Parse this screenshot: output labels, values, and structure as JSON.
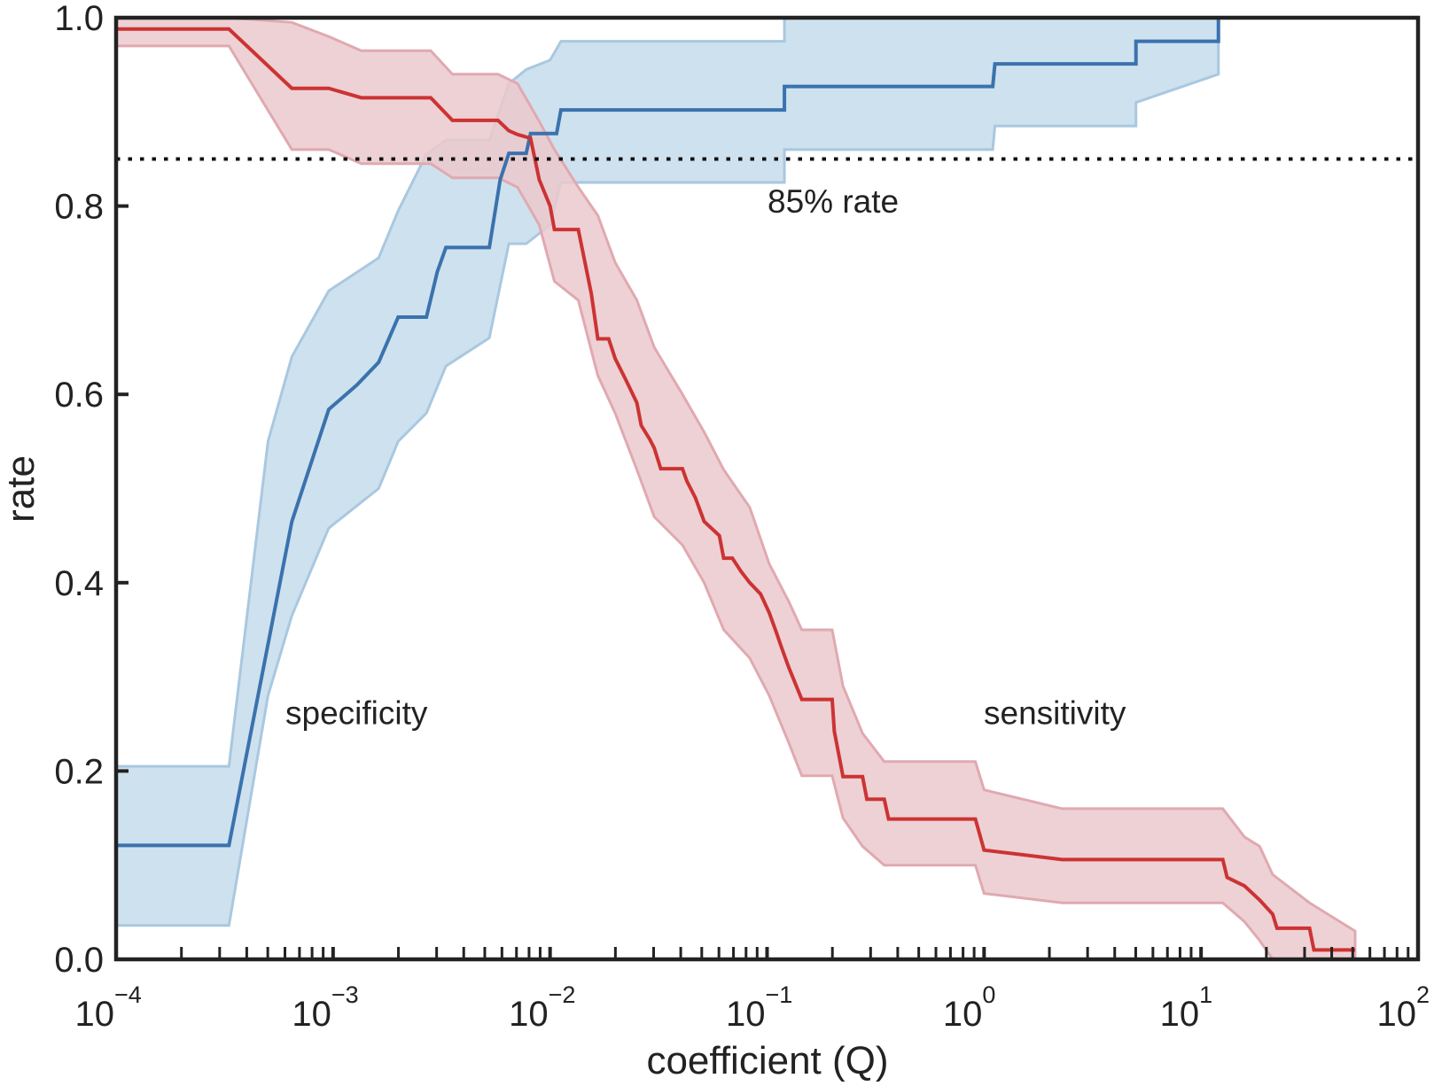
{
  "chart_data": {
    "type": "line",
    "title": "",
    "xlabel": "coefficient (Q)",
    "ylabel": "rate",
    "xscale": "log",
    "xlim": [
      0.0001,
      100
    ],
    "ylim": [
      0.0,
      1.0
    ],
    "grid": false,
    "legend": "none",
    "x_ticks": [
      {
        "base": "10",
        "exp": "−4",
        "value": 0.0001
      },
      {
        "base": "10",
        "exp": "−3",
        "value": 0.001
      },
      {
        "base": "10",
        "exp": "−2",
        "value": 0.01
      },
      {
        "base": "10",
        "exp": "−1",
        "value": 0.1
      },
      {
        "base": "10",
        "exp": "0",
        "value": 1
      },
      {
        "base": "10",
        "exp": "1",
        "value": 10
      },
      {
        "base": "10",
        "exp": "2",
        "value": 100
      }
    ],
    "y_ticks": [
      {
        "label": "0.0",
        "value": 0.0
      },
      {
        "label": "0.2",
        "value": 0.2
      },
      {
        "label": "0.4",
        "value": 0.4
      },
      {
        "label": "0.6",
        "value": 0.6
      },
      {
        "label": "0.8",
        "value": 0.8
      },
      {
        "label": "1.0",
        "value": 1.0
      }
    ],
    "reference_line": {
      "value": 0.85,
      "label": "85% rate",
      "style": "dotted",
      "color": "#111111"
    },
    "annotations": [
      {
        "text": "specificity",
        "log10_x": -3.22,
        "y": 0.25
      },
      {
        "text": "sensitivity",
        "log10_x": 0.0,
        "y": 0.25
      },
      {
        "text": "85% rate",
        "log10_x": -1.0,
        "y": 0.8
      }
    ],
    "series": [
      {
        "name": "specificity",
        "color": "#3a72ae",
        "band_color": "#c6dceb",
        "band_edge_color": "#a9c8e0",
        "log10_x": [
          -4.0,
          -3.48,
          -3.19,
          -3.02,
          -2.89,
          -2.79,
          -2.7,
          -2.57,
          -2.52,
          -2.48,
          -2.28,
          -2.23,
          -2.19,
          -2.11,
          -2.09,
          -1.97,
          -1.95,
          -0.92,
          -0.92,
          0.04,
          0.05,
          0.7,
          0.7,
          1.08,
          1.08
        ],
        "values": [
          0.121,
          0.121,
          0.465,
          0.584,
          0.61,
          0.634,
          0.682,
          0.682,
          0.73,
          0.756,
          0.756,
          0.828,
          0.856,
          0.856,
          0.877,
          0.877,
          0.902,
          0.902,
          0.927,
          0.927,
          0.951,
          0.951,
          0.975,
          0.975,
          1.0
        ],
        "band_log10_x": [
          -4.0,
          -3.48,
          -3.3,
          -3.19,
          -3.02,
          -2.79,
          -2.7,
          -2.57,
          -2.48,
          -2.28,
          -2.19,
          -2.11,
          -2.0,
          -1.95,
          -0.92,
          -0.92,
          0.04,
          0.05,
          0.7,
          0.7,
          1.08
        ],
        "band_lower": [
          0.036,
          0.036,
          0.28,
          0.365,
          0.458,
          0.5,
          0.55,
          0.58,
          0.63,
          0.66,
          0.76,
          0.76,
          0.78,
          0.825,
          0.825,
          0.86,
          0.86,
          0.885,
          0.885,
          0.91,
          0.94
        ],
        "band_upper": [
          0.205,
          0.205,
          0.55,
          0.64,
          0.71,
          0.745,
          0.795,
          0.855,
          0.87,
          0.87,
          0.93,
          0.945,
          0.955,
          0.975,
          0.975,
          1.0,
          1.0,
          1.0,
          1.0,
          1.0,
          1.0
        ]
      },
      {
        "name": "sensitivity",
        "color": "#cc3333",
        "band_color": "#ebc9cd",
        "band_edge_color": "#e0a9b0",
        "log10_x": [
          -4.0,
          -3.48,
          -3.19,
          -3.02,
          -2.87,
          -2.55,
          -2.45,
          -2.24,
          -2.19,
          -2.15,
          -2.09,
          -2.05,
          -2.0,
          -1.98,
          -1.87,
          -1.81,
          -1.78,
          -1.73,
          -1.7,
          -1.65,
          -1.6,
          -1.58,
          -1.54,
          -1.52,
          -1.49,
          -1.39,
          -1.37,
          -1.33,
          -1.29,
          -1.22,
          -1.2,
          -1.16,
          -1.12,
          -1.08,
          -1.03,
          -0.99,
          -0.96,
          -0.93,
          -0.9,
          -0.84,
          -0.7,
          -0.69,
          -0.65,
          -0.56,
          -0.54,
          -0.46,
          -0.44,
          -0.04,
          0.0,
          0.36,
          1.1,
          1.12,
          1.2,
          1.27,
          1.33,
          1.35,
          1.5,
          1.52,
          1.71
        ],
        "values": [
          0.988,
          0.988,
          0.925,
          0.925,
          0.915,
          0.915,
          0.891,
          0.891,
          0.88,
          0.876,
          0.872,
          0.828,
          0.8,
          0.775,
          0.775,
          0.707,
          0.659,
          0.659,
          0.638,
          0.615,
          0.591,
          0.567,
          0.552,
          0.543,
          0.521,
          0.521,
          0.508,
          0.49,
          0.465,
          0.45,
          0.426,
          0.426,
          0.412,
          0.4,
          0.388,
          0.368,
          0.349,
          0.329,
          0.31,
          0.276,
          0.276,
          0.242,
          0.194,
          0.194,
          0.17,
          0.17,
          0.149,
          0.149,
          0.116,
          0.106,
          0.106,
          0.087,
          0.078,
          0.063,
          0.048,
          0.033,
          0.033,
          0.01,
          0.01
        ],
        "band_log10_x": [
          -4.0,
          -3.48,
          -3.19,
          -3.02,
          -2.87,
          -2.55,
          -2.45,
          -2.24,
          -2.15,
          -2.05,
          -1.98,
          -1.87,
          -1.78,
          -1.7,
          -1.6,
          -1.52,
          -1.39,
          -1.29,
          -1.2,
          -1.08,
          -0.99,
          -0.9,
          -0.84,
          -0.7,
          -0.65,
          -0.56,
          -0.46,
          -0.04,
          0.0,
          0.36,
          1.1,
          1.2,
          1.27,
          1.33,
          1.5,
          1.71
        ],
        "band_lower": [
          0.97,
          0.97,
          0.86,
          0.86,
          0.845,
          0.845,
          0.83,
          0.83,
          0.82,
          0.78,
          0.72,
          0.7,
          0.62,
          0.58,
          0.52,
          0.47,
          0.44,
          0.4,
          0.35,
          0.32,
          0.28,
          0.23,
          0.195,
          0.195,
          0.15,
          0.12,
          0.1,
          0.1,
          0.07,
          0.06,
          0.06,
          0.04,
          0.02,
          0.0,
          0.0,
          0.0
        ],
        "band_upper": [
          1.0,
          1.0,
          0.995,
          0.98,
          0.965,
          0.965,
          0.94,
          0.94,
          0.93,
          0.89,
          0.86,
          0.82,
          0.79,
          0.74,
          0.7,
          0.65,
          0.6,
          0.56,
          0.52,
          0.48,
          0.42,
          0.38,
          0.35,
          0.35,
          0.29,
          0.24,
          0.21,
          0.21,
          0.18,
          0.16,
          0.16,
          0.13,
          0.12,
          0.09,
          0.06,
          0.03
        ]
      }
    ]
  }
}
